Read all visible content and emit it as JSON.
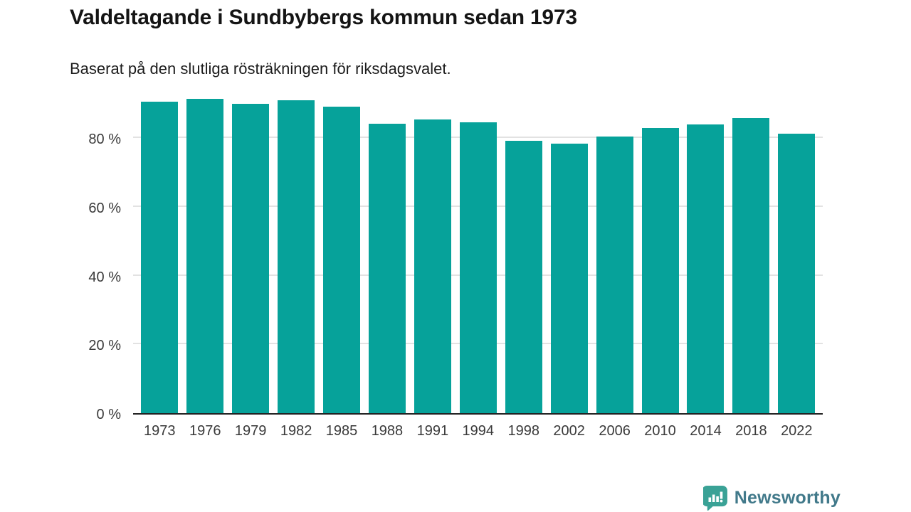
{
  "header": {
    "title": "Valdeltagande i Sundbybergs kommun sedan 1973",
    "subtitle": "Baserat på den slutliga rösträkningen för riksdagsvalet."
  },
  "chart_data": {
    "type": "bar",
    "title": "Valdeltagande i Sundbybergs kommun sedan 1973",
    "subtitle": "Baserat på den slutliga rösträkningen för riksdagsvalet.",
    "categories": [
      "1973",
      "1976",
      "1979",
      "1982",
      "1985",
      "1988",
      "1991",
      "1994",
      "1998",
      "2002",
      "2006",
      "2010",
      "2014",
      "2018",
      "2022"
    ],
    "values": [
      90.7,
      91.5,
      90.0,
      91.0,
      89.2,
      84.3,
      85.4,
      84.6,
      79.2,
      78.5,
      80.6,
      82.9,
      84.1,
      85.8,
      81.3
    ],
    "unit": "%",
    "xlabel": "",
    "ylabel": "",
    "ylim": [
      0,
      93
    ],
    "ytick_values": [
      0,
      20,
      40,
      60,
      80
    ],
    "ytick_labels": [
      "0 %",
      "20 %",
      "40 %",
      "60 %",
      "80 %"
    ],
    "grid": true,
    "legend": "none",
    "bar_color": "#06a29a",
    "gridline_color": "#e2e2e2",
    "axis_line_color": "#222222",
    "tick_label_color": "#3a3a3a"
  },
  "footer": {
    "brand": "Newsworthy",
    "brand_color": "#41798a",
    "logo_icon": "newsworthy-speech-bubble-bar-chart-icon",
    "logo_color": "#3aa296"
  }
}
